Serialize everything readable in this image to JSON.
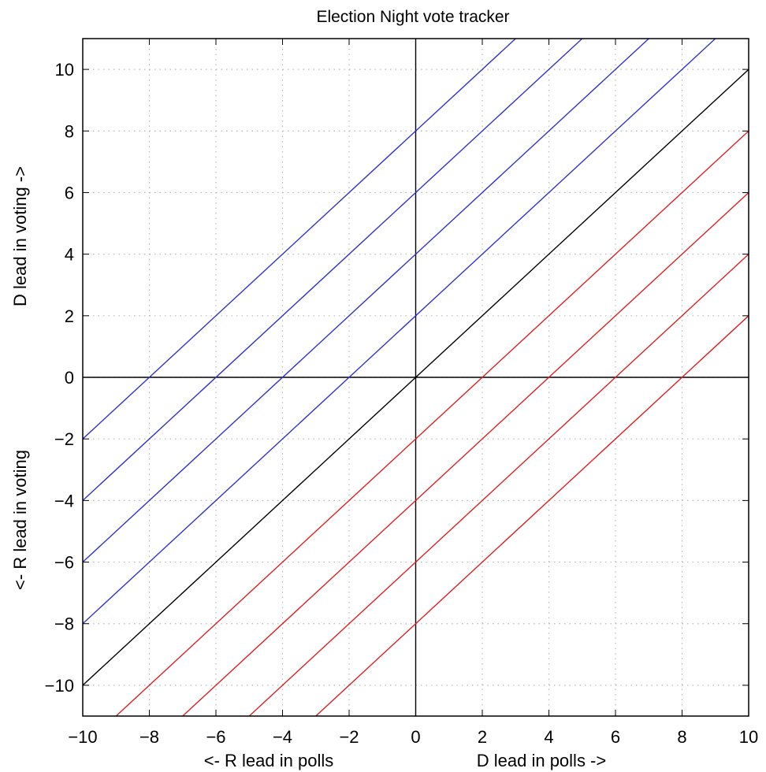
{
  "chart_data": {
    "type": "line",
    "title": "Election Night vote tracker",
    "xlabel_left": "<- R lead in polls",
    "xlabel_right": "D lead in polls ->",
    "ylabel_top": "D lead in voting ->",
    "ylabel_bottom": "<- R lead in voting",
    "xlim": [
      -10,
      10
    ],
    "ylim": [
      -11,
      11
    ],
    "xticks": [
      -10,
      -8,
      -6,
      -4,
      -2,
      0,
      2,
      4,
      6,
      8,
      10
    ],
    "yticks": [
      -10,
      -8,
      -6,
      -4,
      -2,
      0,
      2,
      4,
      6,
      8,
      10
    ],
    "xtick_labels": [
      "−10",
      "−8",
      "−6",
      "−4",
      "−2",
      "0",
      "2",
      "4",
      "6",
      "8",
      "10"
    ],
    "ytick_labels": [
      "−10",
      "−8",
      "−6",
      "−4",
      "−2",
      "0",
      "2",
      "4",
      "6",
      "8",
      "10"
    ],
    "grid": true,
    "reference_lines": [
      {
        "orientation": "horizontal",
        "value": 0
      },
      {
        "orientation": "vertical",
        "value": 0
      }
    ],
    "colors": {
      "blue": "#3333cc",
      "black": "#000000",
      "red": "#dd2222"
    },
    "series": [
      {
        "color": "#3333cc",
        "x": [
          -10,
          3
        ],
        "y": [
          -2,
          11
        ]
      },
      {
        "color": "#3333cc",
        "x": [
          -10,
          5
        ],
        "y": [
          -4,
          11
        ]
      },
      {
        "color": "#3333cc",
        "x": [
          -10,
          7
        ],
        "y": [
          -6,
          11
        ]
      },
      {
        "color": "#3333cc",
        "x": [
          -10,
          9
        ],
        "y": [
          -8,
          11
        ]
      },
      {
        "color": "#000000",
        "x": [
          -10,
          10
        ],
        "y": [
          -10,
          10
        ]
      },
      {
        "color": "#dd2222",
        "x": [
          -9,
          10
        ],
        "y": [
          -11,
          8
        ]
      },
      {
        "color": "#dd2222",
        "x": [
          -7,
          10
        ],
        "y": [
          -11,
          6
        ]
      },
      {
        "color": "#dd2222",
        "x": [
          -5,
          10
        ],
        "y": [
          -11,
          4
        ]
      },
      {
        "color": "#dd2222",
        "x": [
          -3,
          10
        ],
        "y": [
          -11,
          2
        ]
      }
    ]
  }
}
